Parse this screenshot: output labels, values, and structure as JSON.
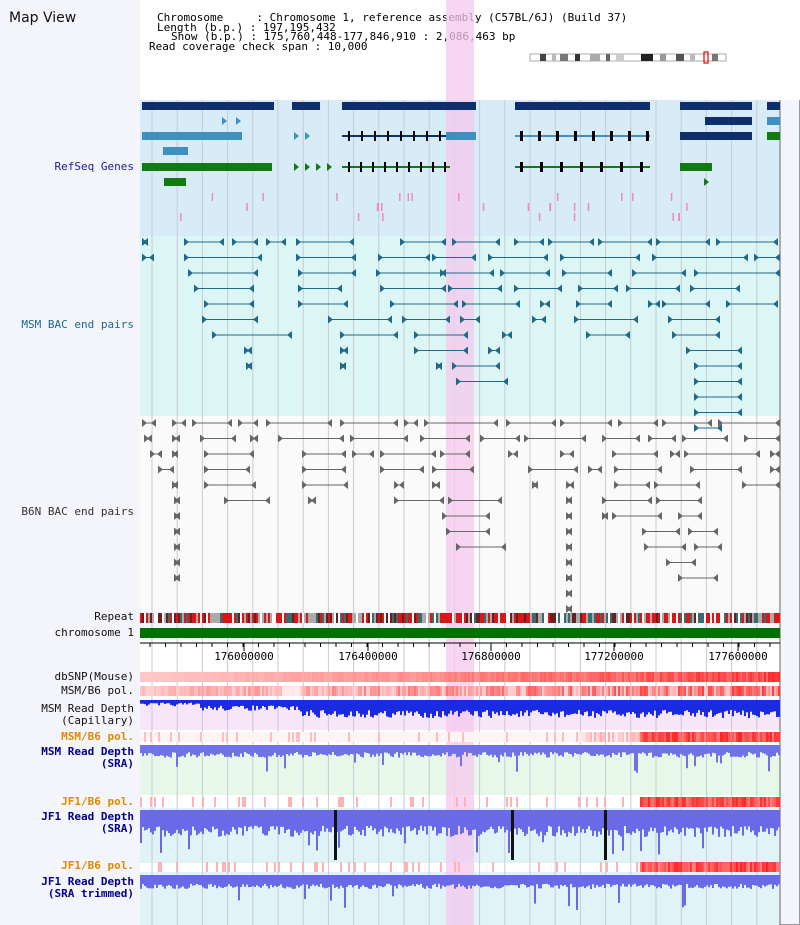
{
  "window": {
    "title": "Map View"
  },
  "info": {
    "line1": "Chromosome     : Chromosome 1, reference assembly (C57BL/6J) (Build 37)",
    "line2": "Length (b.p.) : 197,195,432",
    "line3": "Show (b.p.) : 175,760,448-177,846,910 : 2,086,463 bp",
    "line4": "Read coverage check span : 10,000"
  },
  "tracks": {
    "refseq": "RefSeq Genes",
    "msm_bac": "MSM BAC end pairs",
    "b6n_bac": "B6N BAC end pairs",
    "repeat": "Repeat",
    "chromosome": "chromosome 1",
    "dbsnp": "dbSNP(Mouse)",
    "msm_b6_pol_1": "MSM/B6 pol.",
    "msm_depth_cap_1": "MSM Read Depth",
    "msm_depth_cap_2": "(Capillary)",
    "msm_b6_pol_2": "MSM/B6 pol.",
    "msm_depth_sra_1": "MSM Read Depth",
    "msm_depth_sra_2": "(SRA)",
    "jf1_b6_pol_1": "JF1/B6 pol.",
    "jf1_depth_sra_1": "JF1 Read Depth",
    "jf1_depth_sra_2": "(SRA)",
    "jf1_b6_pol_2": "JF1/B6 pol.",
    "jf1_depth_trim_1": "JF1 Read Depth",
    "jf1_depth_trim_2": "(SRA trimmed)"
  },
  "axis": {
    "ticks": [
      "176000000",
      "176400000",
      "176800000",
      "177200000",
      "177600000"
    ]
  },
  "colors": {
    "refseq_label": "#1a1aa0",
    "msm_label": "#1a6a8a",
    "b6n_label": "#333333",
    "pol_orange": "#e08a00",
    "depth_blue": "#00008b",
    "highlight": "#f5c8ee",
    "refseq_bg": "#d8ecf8",
    "msm_bg": "#dcf6f6",
    "chromosome_green": "#007000"
  }
}
